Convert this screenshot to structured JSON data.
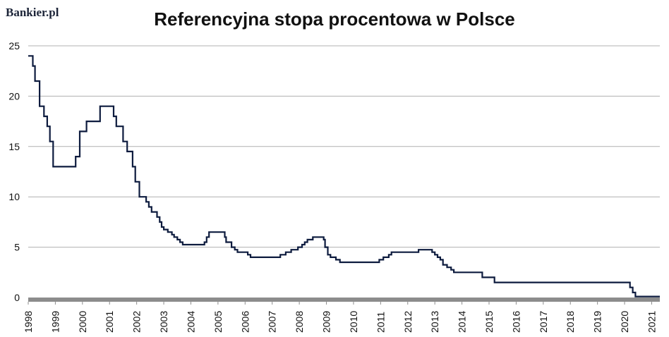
{
  "brand": {
    "logo_text": "Bankier.pl"
  },
  "colors": {
    "line": "#0d1b3e",
    "grid": "#b0b0b0",
    "baseline": "#8c8c8c"
  },
  "chart_data": {
    "type": "line",
    "title": "Referencyjna stopa procentowa w Polsce",
    "xlabel": "",
    "ylabel": "",
    "xlim": [
      1998,
      2021.3
    ],
    "ylim": [
      0,
      25
    ],
    "y_ticks": [
      0,
      5,
      10,
      15,
      20,
      25
    ],
    "x_tick_labels": [
      "1998",
      "1999",
      "2000",
      "2001",
      "2002",
      "2003",
      "2004",
      "2005",
      "2006",
      "2007",
      "2008",
      "2009",
      "2010",
      "2011",
      "2012",
      "2013",
      "2014",
      "2015",
      "2016",
      "2017",
      "2018",
      "2019",
      "2020",
      "2021"
    ],
    "grid": true,
    "legend": "none",
    "step": true,
    "series": [
      {
        "points": [
          [
            1998.0,
            24.0
          ],
          [
            1998.17,
            23.0
          ],
          [
            1998.25,
            21.5
          ],
          [
            1998.42,
            19.0
          ],
          [
            1998.58,
            18.0
          ],
          [
            1998.7,
            17.0
          ],
          [
            1998.8,
            15.5
          ],
          [
            1998.92,
            13.0
          ],
          [
            1999.75,
            14.0
          ],
          [
            1999.9,
            16.5
          ],
          [
            2000.15,
            17.5
          ],
          [
            2000.65,
            19.0
          ],
          [
            2001.15,
            18.0
          ],
          [
            2001.25,
            17.0
          ],
          [
            2001.5,
            15.5
          ],
          [
            2001.65,
            14.5
          ],
          [
            2001.85,
            13.0
          ],
          [
            2001.95,
            11.5
          ],
          [
            2002.1,
            10.0
          ],
          [
            2002.35,
            9.5
          ],
          [
            2002.45,
            9.0
          ],
          [
            2002.55,
            8.5
          ],
          [
            2002.75,
            8.0
          ],
          [
            2002.85,
            7.5
          ],
          [
            2002.92,
            7.0
          ],
          [
            2003.0,
            6.75
          ],
          [
            2003.15,
            6.5
          ],
          [
            2003.3,
            6.25
          ],
          [
            2003.38,
            6.0
          ],
          [
            2003.5,
            5.75
          ],
          [
            2003.6,
            5.5
          ],
          [
            2003.7,
            5.25
          ],
          [
            2004.5,
            5.5
          ],
          [
            2004.58,
            6.0
          ],
          [
            2004.67,
            6.5
          ],
          [
            2005.25,
            6.0
          ],
          [
            2005.3,
            5.5
          ],
          [
            2005.5,
            5.0
          ],
          [
            2005.62,
            4.75
          ],
          [
            2005.72,
            4.5
          ],
          [
            2006.1,
            4.25
          ],
          [
            2006.2,
            4.0
          ],
          [
            2007.3,
            4.25
          ],
          [
            2007.5,
            4.5
          ],
          [
            2007.7,
            4.75
          ],
          [
            2007.95,
            5.0
          ],
          [
            2008.1,
            5.25
          ],
          [
            2008.2,
            5.5
          ],
          [
            2008.3,
            5.75
          ],
          [
            2008.5,
            6.0
          ],
          [
            2008.9,
            5.75
          ],
          [
            2008.95,
            5.0
          ],
          [
            2009.05,
            4.25
          ],
          [
            2009.15,
            4.0
          ],
          [
            2009.35,
            3.75
          ],
          [
            2009.5,
            3.5
          ],
          [
            2010.95,
            3.75
          ],
          [
            2011.1,
            4.0
          ],
          [
            2011.3,
            4.25
          ],
          [
            2011.4,
            4.5
          ],
          [
            2012.4,
            4.75
          ],
          [
            2012.9,
            4.5
          ],
          [
            2013.0,
            4.25
          ],
          [
            2013.1,
            4.0
          ],
          [
            2013.2,
            3.75
          ],
          [
            2013.3,
            3.25
          ],
          [
            2013.45,
            3.0
          ],
          [
            2013.6,
            2.75
          ],
          [
            2013.7,
            2.5
          ],
          [
            2014.75,
            2.0
          ],
          [
            2015.2,
            1.5
          ],
          [
            2020.2,
            1.0
          ],
          [
            2020.3,
            0.5
          ],
          [
            2020.4,
            0.1
          ],
          [
            2021.3,
            0.1
          ]
        ]
      }
    ]
  }
}
